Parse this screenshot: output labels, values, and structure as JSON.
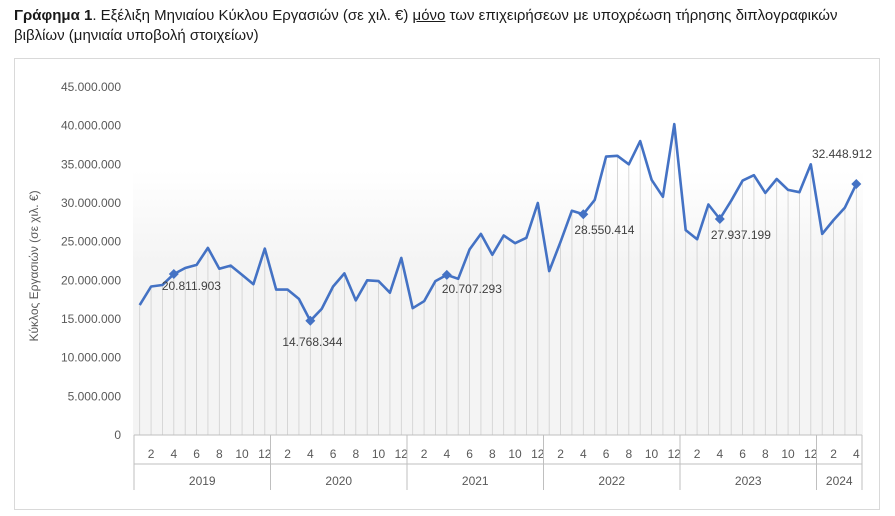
{
  "caption": {
    "prefix": "Γράφημα 1",
    "part1": ". Εξέλιξη Μηνιαίου Κύκλου Εργασιών (σε χιλ. €) ",
    "underlined": "μόνο",
    "part2": " των επιχειρήσεων με υποχρέωση τήρησης διπλογραφικών βιβλίων (μηνιαία υποβολή στοιχείων)"
  },
  "chart_data": {
    "type": "line",
    "ylabel": "Κύκλος Εργασιών (σε χιλ. €)",
    "ylim": [
      0,
      45000000
    ],
    "yticks": [
      0,
      5000000,
      10000000,
      15000000,
      20000000,
      25000000,
      30000000,
      35000000,
      40000000,
      45000000
    ],
    "ytick_labels": [
      "0",
      "5.000.000",
      "10.000.000",
      "15.000.000",
      "20.000.000",
      "25.000.000",
      "30.000.000",
      "35.000.000",
      "40.000.000",
      "45.000.000"
    ],
    "years": [
      {
        "label": "2019",
        "months": 12
      },
      {
        "label": "2020",
        "months": 12
      },
      {
        "label": "2021",
        "months": 12
      },
      {
        "label": "2022",
        "months": 12
      },
      {
        "label": "2023",
        "months": 12
      },
      {
        "label": "2024",
        "months": 4
      }
    ],
    "month_tick_labels": [
      "2",
      "4",
      "6",
      "8",
      "10",
      "12"
    ],
    "line_color": "#4472c4",
    "values": [
      16800000,
      19200000,
      19400000,
      20811903,
      21600000,
      22000000,
      24200000,
      21500000,
      21900000,
      20700000,
      19500000,
      24100000,
      18800000,
      18800000,
      17600000,
      14768344,
      16300000,
      19200000,
      20900000,
      17400000,
      20000000,
      19900000,
      18400000,
      22900000,
      16400000,
      17300000,
      19900000,
      20707293,
      20200000,
      24000000,
      26000000,
      23300000,
      25800000,
      24800000,
      25500000,
      30000000,
      21200000,
      25000000,
      29000000,
      28550414,
      30400000,
      36000000,
      36100000,
      35000000,
      38000000,
      33000000,
      30800000,
      40200000,
      26500000,
      25300000,
      29800000,
      27937199,
      30300000,
      32900000,
      33600000,
      31300000,
      33100000,
      31700000,
      31400000,
      35000000,
      26000000,
      27800000,
      29400000,
      32448912
    ],
    "labeled_points": [
      {
        "index": 3,
        "label": "20.811.903"
      },
      {
        "index": 15,
        "label": "14.768.344"
      },
      {
        "index": 27,
        "label": "20.707.293"
      },
      {
        "index": 39,
        "label": "28.550.414"
      },
      {
        "index": 51,
        "label": "27.937.199"
      },
      {
        "index": 63,
        "label": "32.448.912"
      }
    ]
  }
}
